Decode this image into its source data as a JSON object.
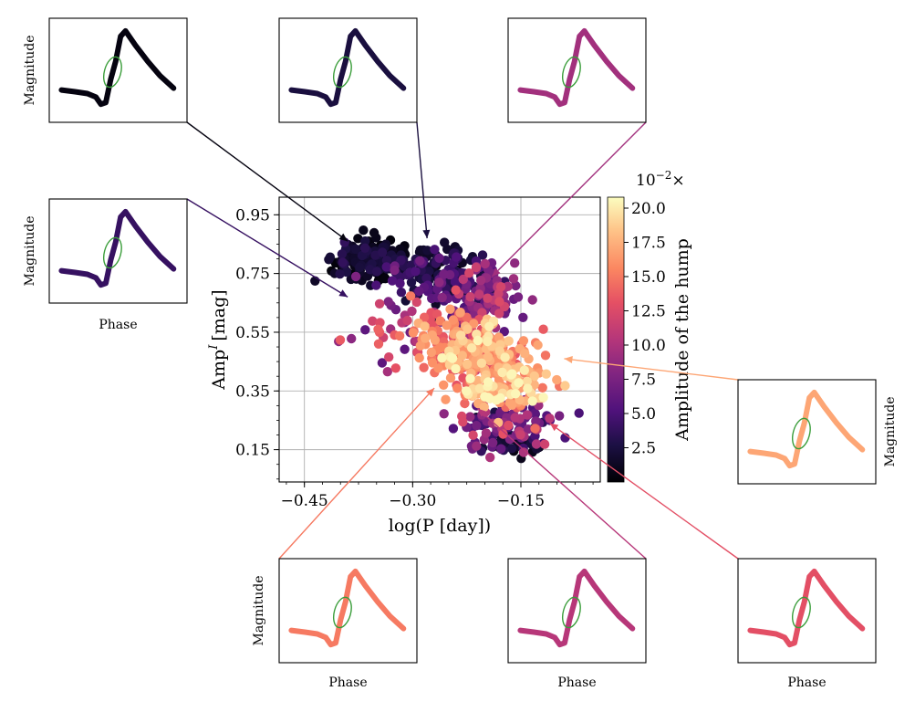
{
  "chart_data": {
    "type": "scatter",
    "xlabel": "log(P [day])",
    "ylabel": "Amp",
    "ylabel_sup": "I",
    "ylabel_unit": "[mag]",
    "xlim": [
      -0.485,
      -0.04
    ],
    "ylim": [
      0.04,
      1.01
    ],
    "xticks": [
      -0.45,
      -0.3,
      -0.15
    ],
    "xtick_labels": [
      "−0.45",
      "−0.30",
      "−0.15"
    ],
    "yticks": [
      0.15,
      0.35,
      0.55,
      0.75,
      0.95
    ],
    "ytick_labels": [
      "0.15",
      "0.35",
      "0.55",
      "0.75",
      "0.95"
    ],
    "grid": true,
    "colorbar": {
      "label": "Amplitude of the hump",
      "multiplier": "10",
      "multiplier_exp": "−2",
      "multiplier_suffix": "×",
      "range": [
        0,
        20.8
      ],
      "ticks": [
        2.5,
        5.0,
        7.5,
        10.0,
        12.5,
        15.0,
        17.5,
        20.0
      ],
      "tick_labels": [
        "2.5",
        "5.0",
        "7.5",
        "10.0",
        "12.5",
        "15.0",
        "17.5",
        "20.0"
      ],
      "colormap": "magma"
    },
    "clusters": [
      {
        "x": -0.36,
        "y": 0.8,
        "sx": 0.045,
        "sy": 0.05,
        "n": 150,
        "c": 1.2,
        "cs": 1.5
      },
      {
        "x": -0.27,
        "y": 0.75,
        "sx": 0.04,
        "sy": 0.07,
        "n": 140,
        "c": 3.5,
        "cs": 2.5
      },
      {
        "x": -0.2,
        "y": 0.68,
        "sx": 0.04,
        "sy": 0.08,
        "n": 110,
        "c": 8.0,
        "cs": 3.0
      },
      {
        "x": -0.22,
        "y": 0.5,
        "sx": 0.05,
        "sy": 0.09,
        "n": 230,
        "c": 15.5,
        "cs": 3.5
      },
      {
        "x": -0.17,
        "y": 0.38,
        "sx": 0.045,
        "sy": 0.07,
        "n": 140,
        "c": 17.5,
        "cs": 3.0
      },
      {
        "x": -0.17,
        "y": 0.24,
        "sx": 0.05,
        "sy": 0.06,
        "n": 110,
        "c": 7.5,
        "cs": 4.5
      },
      {
        "x": -0.16,
        "y": 0.17,
        "sx": 0.03,
        "sy": 0.03,
        "n": 30,
        "c": 2.0,
        "cs": 1.5
      },
      {
        "x": -0.31,
        "y": 0.58,
        "sx": 0.05,
        "sy": 0.09,
        "n": 50,
        "c": 11.0,
        "cs": 4.0
      }
    ],
    "insets": [
      {
        "id": "inset-top-left",
        "xlabel": "",
        "ylabel": "Magnitude",
        "hump": 0.5,
        "target": [
          -0.39,
          0.86
        ]
      },
      {
        "id": "inset-top-middle",
        "xlabel": "",
        "ylabel": "",
        "hump": 2.5,
        "target": [
          -0.28,
          0.87
        ]
      },
      {
        "id": "inset-top-right",
        "xlabel": "",
        "ylabel": "",
        "hump": 9.5,
        "target": [
          -0.19,
          0.74
        ]
      },
      {
        "id": "inset-mid-left",
        "xlabel": "Phase",
        "ylabel": "Magnitude",
        "hump": 4.0,
        "target": [
          -0.39,
          0.67
        ]
      },
      {
        "id": "inset-mid-right",
        "xlabel": "",
        "ylabel": "Magnitude",
        "hump": 17.0,
        "target": [
          -0.09,
          0.46
        ]
      },
      {
        "id": "inset-bottom-left",
        "xlabel": "Phase",
        "ylabel": "Magnitude",
        "hump": 15.0,
        "target": [
          -0.27,
          0.36
        ]
      },
      {
        "id": "inset-bottom-middle",
        "xlabel": "Phase",
        "ylabel": "",
        "hump": 10.5,
        "target": [
          -0.21,
          0.29
        ]
      },
      {
        "id": "inset-bottom-right",
        "xlabel": "Phase",
        "ylabel": "",
        "hump": 13.0,
        "target": [
          -0.11,
          0.24
        ]
      }
    ]
  }
}
